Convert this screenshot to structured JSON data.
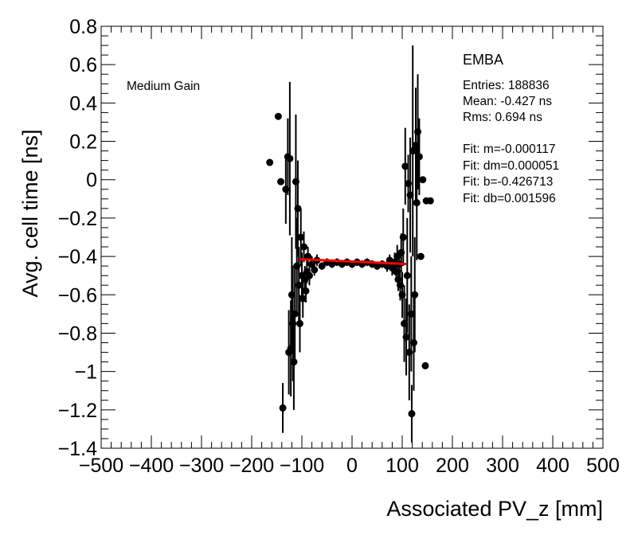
{
  "chart_data": {
    "type": "scatter",
    "xlabel": "Associated PV_z [mm]",
    "ylabel": "Avg. cell time [ns]",
    "xlim": [
      -500,
      500
    ],
    "ylim": [
      -1.4,
      0.8
    ],
    "xticks": [
      -500,
      -400,
      -300,
      -200,
      -100,
      0,
      100,
      200,
      300,
      400,
      500
    ],
    "yticks": [
      -1.4,
      -1.2,
      -1,
      -0.8,
      -0.6,
      -0.4,
      -0.2,
      0,
      0.2,
      0.4,
      0.6,
      0.8
    ],
    "xtick_labels": [
      "−500",
      "−400",
      "−300",
      "−200",
      "−100",
      "0",
      "100",
      "200",
      "300",
      "400",
      "500"
    ],
    "ytick_labels": [
      "−1.4",
      "−1.2",
      "−1",
      "−0.8",
      "−0.6",
      "−0.4",
      "−0.2",
      "0",
      "0.2",
      "0.4",
      "0.6",
      "0.8"
    ],
    "annotations": {
      "gain": "Medium Gain",
      "region": "EMBA",
      "entries": "Entries: 188836",
      "mean": "Mean: -0.427 ns",
      "rms": "Rms: 0.694 ns",
      "fit_m": "Fit: m=-0.000117",
      "fit_dm": "Fit: dm=0.000051",
      "fit_b": "Fit: b=-0.426713",
      "fit_db": "Fit: db=0.001596"
    },
    "fit_line": {
      "color": "#ff0000",
      "slope": -0.000117,
      "intercept": -0.426713,
      "x_range": [
        -105,
        108
      ]
    },
    "points": [
      {
        "x": -164,
        "y": 0.09,
        "err": 0
      },
      {
        "x": -147,
        "y": 0.33,
        "err": 0
      },
      {
        "x": -142,
        "y": -0.01,
        "err": 0
      },
      {
        "x": -138,
        "y": -1.19,
        "err": 0.13
      },
      {
        "x": -132,
        "y": -0.05,
        "err": 0.18
      },
      {
        "x": -128,
        "y": 0.12,
        "err": 0.2
      },
      {
        "x": -126,
        "y": -0.9,
        "err": 0.22
      },
      {
        "x": -124,
        "y": 0.11,
        "err": 0.4
      },
      {
        "x": -122,
        "y": -0.88,
        "err": 0.25
      },
      {
        "x": -120,
        "y": -0.6,
        "err": 0.3
      },
      {
        "x": -118,
        "y": -0.75,
        "err": 0.3
      },
      {
        "x": -116,
        "y": -0.95,
        "err": 0.25
      },
      {
        "x": -114,
        "y": -0.7,
        "err": 0.25
      },
      {
        "x": -112,
        "y": -0.01,
        "err": 0.35
      },
      {
        "x": -110,
        "y": -0.45,
        "err": 0.25
      },
      {
        "x": -108,
        "y": -0.15,
        "err": 0.25
      },
      {
        "x": -106,
        "y": -0.55,
        "err": 0.2
      },
      {
        "x": -104,
        "y": -0.75,
        "err": 0.15
      },
      {
        "x": -102,
        "y": -0.3,
        "err": 0.15
      },
      {
        "x": -100,
        "y": -0.5,
        "err": 0.12
      },
      {
        "x": -98,
        "y": -0.62,
        "err": 0.1
      },
      {
        "x": -96,
        "y": -0.35,
        "err": 0.08
      },
      {
        "x": -94,
        "y": -0.52,
        "err": 0.07
      },
      {
        "x": -92,
        "y": -0.58,
        "err": 0.06
      },
      {
        "x": -90,
        "y": -0.48,
        "err": 0.06
      },
      {
        "x": -88,
        "y": -0.4,
        "err": 0.05
      },
      {
        "x": -85,
        "y": -0.5,
        "err": 0.05
      },
      {
        "x": -80,
        "y": -0.44,
        "err": 0.04
      },
      {
        "x": -75,
        "y": -0.47,
        "err": 0.03
      },
      {
        "x": -70,
        "y": -0.42,
        "err": 0.03
      },
      {
        "x": -60,
        "y": -0.45,
        "err": 0.02
      },
      {
        "x": -50,
        "y": -0.43,
        "err": 0.02
      },
      {
        "x": -40,
        "y": -0.44,
        "err": 0.02
      },
      {
        "x": -30,
        "y": -0.43,
        "err": 0.02
      },
      {
        "x": -20,
        "y": -0.44,
        "err": 0.02
      },
      {
        "x": -10,
        "y": -0.43,
        "err": 0.02
      },
      {
        "x": 0,
        "y": -0.44,
        "err": 0.02
      },
      {
        "x": 10,
        "y": -0.43,
        "err": 0.02
      },
      {
        "x": 20,
        "y": -0.44,
        "err": 0.02
      },
      {
        "x": 30,
        "y": -0.43,
        "err": 0.02
      },
      {
        "x": 40,
        "y": -0.44,
        "err": 0.02
      },
      {
        "x": 50,
        "y": -0.45,
        "err": 0.02
      },
      {
        "x": 60,
        "y": -0.44,
        "err": 0.02
      },
      {
        "x": 70,
        "y": -0.45,
        "err": 0.03
      },
      {
        "x": 75,
        "y": -0.42,
        "err": 0.03
      },
      {
        "x": 80,
        "y": -0.46,
        "err": 0.04
      },
      {
        "x": 85,
        "y": -0.43,
        "err": 0.05
      },
      {
        "x": 88,
        "y": -0.48,
        "err": 0.05
      },
      {
        "x": 90,
        "y": -0.4,
        "err": 0.06
      },
      {
        "x": 92,
        "y": -0.52,
        "err": 0.06
      },
      {
        "x": 94,
        "y": -0.44,
        "err": 0.07
      },
      {
        "x": 96,
        "y": -0.55,
        "err": 0.08
      },
      {
        "x": 98,
        "y": -0.38,
        "err": 0.1
      },
      {
        "x": 100,
        "y": -0.6,
        "err": 0.12
      },
      {
        "x": 102,
        "y": -0.3,
        "err": 0.15
      },
      {
        "x": 104,
        "y": -0.75,
        "err": 0.2
      },
      {
        "x": 106,
        "y": 0.07,
        "err": 0.2
      },
      {
        "x": 108,
        "y": -0.82,
        "err": 0.2
      },
      {
        "x": 110,
        "y": -0.5,
        "err": 0.3
      },
      {
        "x": 112,
        "y": -0.02,
        "err": 0.15
      },
      {
        "x": 114,
        "y": -0.9,
        "err": 0.25
      },
      {
        "x": 116,
        "y": -0.08,
        "err": 0.3
      },
      {
        "x": 118,
        "y": -0.7,
        "err": 0.3
      },
      {
        "x": 119,
        "y": -1.22,
        "err": 0.15
      },
      {
        "x": 121,
        "y": 0.15,
        "err": 0.55
      },
      {
        "x": 123,
        "y": -0.85,
        "err": 0.25
      },
      {
        "x": 125,
        "y": -0.6,
        "err": 0.3
      },
      {
        "x": 127,
        "y": 0.18,
        "err": 0.3
      },
      {
        "x": 129,
        "y": -0.12,
        "err": 0.3
      },
      {
        "x": 131,
        "y": 0.25,
        "err": 0.3
      },
      {
        "x": 134,
        "y": 0.12,
        "err": 0.2
      },
      {
        "x": 137,
        "y": -0.4,
        "err": 0
      },
      {
        "x": 141,
        "y": 0.0,
        "err": 0
      },
      {
        "x": 146,
        "y": -0.97,
        "err": 0
      },
      {
        "x": 148,
        "y": -0.11,
        "err": 0
      },
      {
        "x": 156,
        "y": -0.11,
        "err": 0
      }
    ]
  }
}
